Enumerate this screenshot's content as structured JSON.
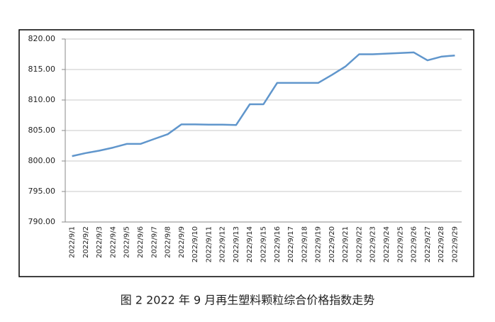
{
  "chart_data": {
    "type": "line",
    "title": "图 2  2022 年 9 月再生塑料颗粒综合价格指数走势",
    "categories": [
      "2022/9/1",
      "2022/9/2",
      "2022/9/3",
      "2022/9/4",
      "2022/9/5",
      "2022/9/6",
      "2022/9/7",
      "2022/9/8",
      "2022/9/9",
      "2022/9/10",
      "2022/9/11",
      "2022/9/12",
      "2022/9/13",
      "2022/9/14",
      "2022/9/15",
      "2022/9/16",
      "2022/9/17",
      "2022/9/18",
      "2022/9/19",
      "2022/9/20",
      "2022/9/21",
      "2022/9/22",
      "2022/9/23",
      "2022/9/24",
      "2022/9/25",
      "2022/9/26",
      "2022/9/27",
      "2022/9/28",
      "2022/9/29"
    ],
    "values": [
      800.8,
      801.3,
      801.7,
      802.2,
      802.8,
      802.8,
      803.6,
      804.4,
      806.0,
      806.0,
      805.95,
      805.95,
      805.9,
      809.3,
      809.3,
      812.8,
      812.8,
      812.8,
      812.8,
      814.1,
      815.5,
      817.5,
      817.5,
      817.6,
      817.7,
      817.8,
      816.5,
      817.1,
      817.3
    ],
    "color": "#6096cc",
    "ylim": [
      790,
      820
    ],
    "yticks": [
      {
        "value": 790,
        "label": "790.00"
      },
      {
        "value": 795,
        "label": "795.00"
      },
      {
        "value": 800,
        "label": "800.00"
      },
      {
        "value": 805,
        "label": "805.00"
      },
      {
        "value": 810,
        "label": "810.00"
      },
      {
        "value": 815,
        "label": "815.00"
      },
      {
        "value": 820,
        "label": "820.00"
      }
    ],
    "grid": true
  }
}
